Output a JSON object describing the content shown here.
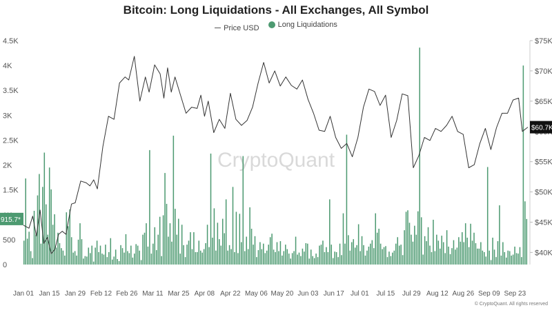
{
  "chart_data": {
    "type": "bar",
    "title": "Bitcoin: Long Liquidations - All Exchanges, All Symbol",
    "legend": [
      {
        "label": "Price USD",
        "marker": "line",
        "color": "#555555"
      },
      {
        "label": "Long Liquidations",
        "marker": "dot",
        "color": "#4d9a71"
      }
    ],
    "legend_position": "top-center",
    "grid": false,
    "watermark": "CryptoQuant",
    "copyright": "© CryptoQuant. All rights reserved",
    "x_ticks": [
      "Jan 01",
      "Jan 15",
      "Jan 29",
      "Feb 12",
      "Feb 26",
      "Mar 11",
      "Mar 25",
      "Apr 08",
      "Apr 22",
      "May 06",
      "May 20",
      "Jun 03",
      "Jun 17",
      "Jul 01",
      "Jul 15",
      "Jul 29",
      "Aug 12",
      "Aug 26",
      "Sep 09",
      "Sep 23"
    ],
    "x_range_days": [
      0,
      273
    ],
    "left_axis": {
      "label": "",
      "ylim": [
        0,
        4500
      ],
      "ticks": [
        0,
        500,
        1000,
        1500,
        2000,
        2500,
        3000,
        3500,
        4000,
        4500
      ],
      "tick_labels": [
        "0",
        "500",
        "1K",
        "1.5K",
        "2K",
        "2.5K",
        "3K",
        "3.5K",
        "4K",
        "4.5K"
      ]
    },
    "right_axis": {
      "label": "",
      "ylim": [
        38000,
        75000
      ],
      "ticks": [
        40000,
        45000,
        50000,
        55000,
        60000,
        65000,
        70000,
        75000
      ],
      "tick_labels": [
        "$40K",
        "$45K",
        "$50K",
        "$55K",
        "$60K",
        "$65K",
        "$70K",
        "$75K"
      ]
    },
    "current_values": {
      "long_liquidations_label": "915.7*",
      "price_label": "$60.7K"
    },
    "series": [
      {
        "name": "Long Liquidations",
        "kind": "bar",
        "axis": "left",
        "color": "#4d9a71",
        "values": [
          480,
          1730,
          520,
          660,
          270,
          130,
          1080,
          600,
          1390,
          1820,
          420,
          1560,
          2250,
          1210,
          600,
          1950,
          1510,
          800,
          1010,
          340,
          640,
          430,
          330,
          280,
          180,
          1050,
          770,
          1110,
          550,
          240,
          270,
          180,
          500,
          830,
          510,
          120,
          170,
          160,
          340,
          230,
          380,
          60,
          340,
          480,
          250,
          380,
          220,
          200,
          400,
          150,
          250,
          530,
          100,
          160,
          300,
          110,
          70,
          390,
          330,
          240,
          610,
          270,
          230,
          380,
          140,
          220,
          410,
          380,
          280,
          90,
          600,
          640,
          830,
          360,
          2300,
          220,
          420,
          750,
          290,
          600,
          960,
          170,
          990,
          1840,
          1220,
          560,
          830,
          460,
          2590,
          1120,
          600,
          920,
          220,
          800,
          390,
          150,
          400,
          480,
          650,
          310,
          650,
          250,
          250,
          480,
          280,
          240,
          310,
          430,
          800,
          350,
          2230,
          540,
          1130,
          280,
          840,
          510,
          380,
          920,
          630,
          1310,
          280,
          390,
          310,
          1560,
          250,
          1060,
          230,
          1020,
          450,
          2180,
          270,
          560,
          310,
          1150,
          720,
          400,
          570,
          150,
          290,
          450,
          310,
          420,
          230,
          280,
          400,
          550,
          620,
          300,
          250,
          450,
          270,
          470,
          180,
          270,
          400,
          310,
          220,
          120,
          230,
          270,
          560,
          200,
          240,
          170,
          320,
          260,
          430,
          420,
          120,
          300,
          170,
          130,
          220,
          150,
          380,
          400,
          480,
          250,
          350,
          250,
          1310,
          400,
          130,
          260,
          250,
          150,
          420,
          190,
          1030,
          420,
          2610,
          590,
          280,
          450,
          510,
          340,
          390,
          810,
          270,
          570,
          390,
          180,
          280,
          360,
          420,
          490,
          330,
          1030,
          640,
          720,
          420,
          310,
          350,
          370,
          150,
          260,
          170,
          240,
          280,
          420,
          550,
          380,
          400,
          190,
          690,
          1060,
          1090,
          840,
          600,
          460,
          780,
          600,
          1070,
          4360,
          950,
          200,
          570,
          470,
          750,
          380,
          250,
          900,
          270,
          600,
          480,
          320,
          580,
          450,
          230,
          690,
          360,
          210,
          330,
          490,
          300,
          340,
          550,
          460,
          650,
          450,
          830,
          540,
          350,
          820,
          480,
          640,
          430,
          320,
          320,
          450,
          280,
          250,
          160,
          1960,
          280,
          90,
          540,
          300,
          150,
          470,
          1190,
          180,
          450,
          250,
          140,
          280,
          270,
          180,
          200,
          360,
          230,
          220,
          350,
          150,
          4000,
          1270,
          915.7
        ]
      },
      {
        "name": "Price USD",
        "kind": "line",
        "axis": "right",
        "x_days": [
          0,
          3,
          5,
          7,
          9,
          11,
          13,
          15,
          17,
          19,
          21,
          23,
          26,
          28,
          31,
          34,
          36,
          38,
          40,
          43,
          46,
          49,
          52,
          55,
          57,
          60,
          63,
          66,
          68,
          71,
          74,
          76,
          78,
          80,
          82,
          85,
          88,
          91,
          94,
          96,
          98,
          100,
          103,
          106,
          109,
          112,
          115,
          118,
          121,
          124,
          127,
          130,
          133,
          136,
          139,
          142,
          145,
          148,
          151,
          154,
          157,
          160,
          163,
          166,
          169,
          172,
          175,
          178,
          181,
          184,
          187,
          190,
          193,
          196,
          199,
          202,
          205,
          208,
          211,
          214,
          217,
          220,
          223,
          226,
          229,
          232,
          235,
          238,
          241,
          244,
          247,
          250,
          253,
          256,
          259,
          262,
          265,
          268,
          270,
          273
        ],
        "values": [
          44500,
          44000,
          46000,
          42700,
          47000,
          41500,
          42500,
          39800,
          40500,
          43000,
          43500,
          43000,
          48000,
          48200,
          51800,
          51500,
          51000,
          52000,
          50500,
          57500,
          62500,
          62000,
          68000,
          69000,
          68500,
          72400,
          65000,
          69000,
          66500,
          71000,
          69500,
          65500,
          70500,
          66500,
          69000,
          66000,
          63000,
          64000,
          63800,
          66000,
          62500,
          65000,
          59800,
          62000,
          60500,
          66300,
          62000,
          61000,
          61800,
          64000,
          68000,
          71400,
          68000,
          70000,
          67500,
          69000,
          67600,
          67000,
          68500,
          65300,
          63000,
          60200,
          60000,
          62500,
          59000,
          57200,
          58000,
          55800,
          59000,
          64000,
          67000,
          66600,
          64300,
          66000,
          59000,
          61800,
          66200,
          65900,
          54000,
          56000,
          59000,
          58500,
          60500,
          60000,
          61000,
          62500,
          60000,
          59500,
          54000,
          54500,
          58000,
          60500,
          57000,
          60600,
          63000,
          63000,
          65200,
          65500,
          60000,
          60700
        ]
      }
    ]
  }
}
